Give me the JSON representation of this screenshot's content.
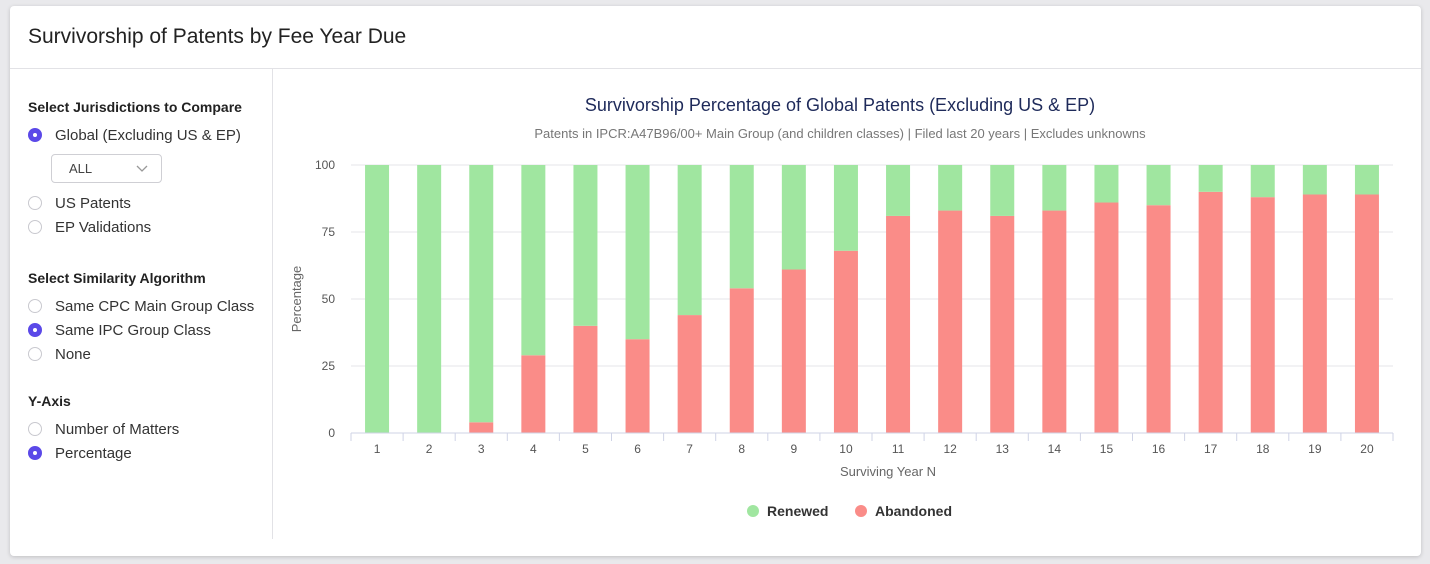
{
  "header": {
    "title": "Survivorship of Patents by Fee Year Due"
  },
  "sidebar": {
    "jurisdictions": {
      "title": "Select Jurisdictions to Compare",
      "options": [
        {
          "label": "Global (Excluding US & EP)",
          "checked": true
        },
        {
          "label": "US Patents",
          "checked": false
        },
        {
          "label": "EP Validations",
          "checked": false
        }
      ],
      "select_value": "ALL"
    },
    "algorithm": {
      "title": "Select Similarity Algorithm",
      "options": [
        {
          "label": "Same CPC Main Group Class",
          "checked": false
        },
        {
          "label": "Same IPC Group Class",
          "checked": true
        },
        {
          "label": "None",
          "checked": false
        }
      ]
    },
    "yaxis": {
      "title": "Y-Axis",
      "options": [
        {
          "label": "Number of Matters",
          "checked": false
        },
        {
          "label": "Percentage",
          "checked": true
        }
      ]
    }
  },
  "colors": {
    "renewed": "#a0e6a0",
    "abandoned": "#fa8c88",
    "accent": "#5b49e8",
    "title": "#1e2a5a"
  },
  "chart_data": {
    "type": "bar",
    "stacked": true,
    "title": "Survivorship Percentage of Global Patents (Excluding US & EP)",
    "subtitle": "Patents in IPCR:A47B96/00+ Main Group (and children classes) | Filed last 20 years | Excludes unknowns",
    "xlabel": "Surviving Year N",
    "ylabel": "Percentage",
    "ylim": [
      0,
      100
    ],
    "yticks": [
      0,
      25,
      50,
      75,
      100
    ],
    "categories": [
      "1",
      "2",
      "3",
      "4",
      "5",
      "6",
      "7",
      "8",
      "9",
      "10",
      "11",
      "12",
      "13",
      "14",
      "15",
      "16",
      "17",
      "18",
      "19",
      "20"
    ],
    "series": [
      {
        "name": "Abandoned",
        "values": [
          0,
          0,
          4,
          29,
          40,
          35,
          44,
          54,
          61,
          68,
          81,
          83,
          81,
          83,
          86,
          85,
          90,
          88,
          89,
          89
        ]
      },
      {
        "name": "Renewed",
        "values": [
          100,
          100,
          96,
          71,
          60,
          65,
          56,
          46,
          39,
          32,
          19,
          17,
          19,
          17,
          14,
          15,
          10,
          12,
          11,
          11
        ]
      }
    ],
    "grid": true,
    "legend": "bottom"
  }
}
